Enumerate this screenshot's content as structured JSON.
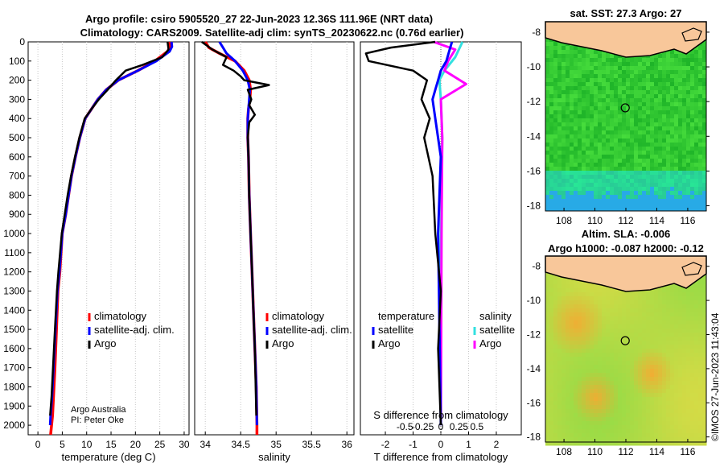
{
  "header": {
    "line1": "Argo profile: csiro 5905520_27 22-Jun-2023 12.36S 111.96E (NRT data)",
    "line2": "Climatology: CARS2009. Satellite-adj clim: synTS_20230622.nc (0.76d earlier)"
  },
  "credits": {
    "org": "Argo Australia",
    "pi": "PI: Peter Oke",
    "stamp": "©IMOS 27-Jun-2023 11:43:04"
  },
  "colors": {
    "climatology": "#ff0000",
    "satellite": "#0000ff",
    "argo": "#000000",
    "sat_salinity": "#33e0e0",
    "argo_salinity": "#ff00ff",
    "land": "#f8c79a"
  },
  "chart_data": [
    {
      "type": "line",
      "name": "temperature-profile",
      "xlabel": "temperature (deg C)",
      "ylabel": "",
      "xlim": [
        -2,
        31
      ],
      "ylim": [
        2050,
        0
      ],
      "xticks": [
        0,
        5,
        10,
        15,
        20,
        25,
        30
      ],
      "yticks": [
        0,
        100,
        200,
        300,
        400,
        500,
        600,
        700,
        800,
        900,
        1000,
        1100,
        1200,
        1300,
        1400,
        1500,
        1600,
        1700,
        1800,
        1900,
        2000
      ],
      "legend": [
        "climatology",
        "satellite-adj. clim.",
        "Argo"
      ],
      "series": [
        {
          "name": "climatology",
          "x": [
            27.0,
            27.1,
            26.6,
            24.0,
            20.5,
            16.5,
            14.0,
            12.3,
            11.0,
            9.7,
            8.6,
            7.7,
            6.9,
            6.3,
            5.7,
            5.0,
            4.5,
            4.1,
            3.8,
            3.5,
            3.2,
            3.0,
            2.8,
            2.6
          ],
          "y": [
            0,
            25,
            50,
            100,
            150,
            200,
            250,
            300,
            350,
            400,
            500,
            600,
            700,
            800,
            900,
            1000,
            1200,
            1300,
            1500,
            1700,
            1850,
            1950,
            2000,
            2050
          ]
        },
        {
          "name": "satellite-adj. clim.",
          "x": [
            27.4,
            27.5,
            27.0,
            24.3,
            20.5,
            16.5,
            14.0,
            12.3,
            11.0,
            9.7,
            8.6,
            7.7,
            6.9,
            6.3,
            5.7,
            5.0,
            4.4,
            4.0,
            3.6,
            3.2,
            2.9,
            2.6,
            2.5
          ],
          "y": [
            0,
            25,
            50,
            100,
            150,
            200,
            250,
            300,
            350,
            400,
            500,
            600,
            700,
            800,
            900,
            1000,
            1200,
            1300,
            1500,
            1700,
            1850,
            1950,
            2000
          ]
        },
        {
          "name": "Argo",
          "x": [
            26.6,
            26.8,
            25.5,
            21.5,
            18.0,
            16.0,
            14.3,
            12.5,
            11.0,
            9.6,
            8.5,
            7.6,
            6.8,
            6.1,
            5.5,
            4.9,
            4.2,
            3.9,
            3.5,
            3.1,
            2.8,
            2.5
          ],
          "y": [
            0,
            40,
            80,
            120,
            150,
            200,
            250,
            300,
            350,
            400,
            500,
            600,
            700,
            800,
            900,
            1000,
            1200,
            1300,
            1500,
            1700,
            1850,
            1950
          ]
        }
      ]
    },
    {
      "type": "line",
      "name": "salinity-profile",
      "xlabel": "salinity",
      "xlim": [
        33.85,
        36.1
      ],
      "ylim": [
        2050,
        0
      ],
      "xticks": [
        34,
        34.5,
        35,
        35.5,
        36
      ],
      "legend": [
        "climatology",
        "satellite-adj. clim.",
        "Argo"
      ],
      "series": [
        {
          "name": "climatology",
          "x": [
            34.0,
            34.05,
            34.2,
            34.42,
            34.55,
            34.62,
            34.64,
            34.63,
            34.61,
            34.6,
            34.6,
            34.61,
            34.62,
            34.64,
            34.66,
            34.68,
            34.7,
            34.72,
            34.73,
            34.73
          ],
          "y": [
            0,
            30,
            60,
            100,
            150,
            200,
            250,
            300,
            350,
            400,
            500,
            600,
            800,
            1000,
            1200,
            1400,
            1600,
            1800,
            2000,
            2050
          ]
        },
        {
          "name": "satellite-adj. clim.",
          "x": [
            34.2,
            34.25,
            34.3,
            34.42,
            34.53,
            34.6,
            34.63,
            34.62,
            34.61,
            34.6,
            34.6,
            34.61,
            34.62,
            34.64,
            34.66,
            34.68,
            34.7,
            34.72,
            34.73
          ],
          "y": [
            0,
            30,
            60,
            100,
            150,
            200,
            250,
            300,
            350,
            400,
            500,
            600,
            800,
            1000,
            1200,
            1400,
            1600,
            1800,
            2000
          ]
        },
        {
          "name": "Argo",
          "x": [
            33.95,
            34.1,
            34.3,
            34.25,
            34.4,
            34.5,
            34.55,
            34.9,
            34.6,
            34.65,
            34.62,
            34.7,
            34.62,
            34.6,
            34.61,
            34.62,
            34.64,
            34.66,
            34.68,
            34.7,
            34.72
          ],
          "y": [
            0,
            40,
            80,
            120,
            150,
            180,
            200,
            225,
            250,
            300,
            330,
            380,
            420,
            500,
            600,
            800,
            1000,
            1200,
            1400,
            1600,
            1950
          ]
        }
      ]
    },
    {
      "type": "line",
      "name": "difference-from-climatology",
      "xlabel": "T difference from climatology",
      "top_axis_label": "S difference from climatology",
      "xlim": [
        -2.9,
        2.9
      ],
      "ylim": [
        2050,
        0
      ],
      "xticks": [
        -2,
        -1,
        0,
        1,
        2
      ],
      "top_ticks": [
        -0.5,
        -0.25,
        0,
        0.25,
        0.5
      ],
      "legend_titles": [
        "temperature",
        "salinity"
      ],
      "legend": [
        "satellite",
        "Argo",
        "satellite",
        "Argo"
      ],
      "series": [
        {
          "name": "temperature satellite",
          "x": [
            0.4,
            0.3,
            0.2,
            0.0,
            -0.1,
            -0.2,
            -0.3,
            -0.2,
            0.0,
            -0.1,
            0.0
          ],
          "y": [
            0,
            50,
            100,
            150,
            200,
            250,
            300,
            400,
            600,
            1000,
            2000
          ]
        },
        {
          "name": "temperature Argo",
          "x": [
            -0.2,
            -1.8,
            -2.7,
            -2.6,
            -1.0,
            -0.5,
            -0.7,
            -0.4,
            -0.6,
            -0.3,
            -0.2,
            0.0,
            -0.1,
            0.0
          ],
          "y": [
            0,
            30,
            60,
            100,
            150,
            200,
            300,
            400,
            500,
            700,
            1000,
            1300,
            1600,
            2000
          ]
        },
        {
          "name": "salinity satellite",
          "x": [
            0.3,
            0.25,
            0.2,
            0.05,
            -0.02,
            0.0,
            0.02,
            0.0,
            0.0
          ],
          "y": [
            0,
            40,
            80,
            150,
            200,
            300,
            500,
            1000,
            2000
          ]
        },
        {
          "name": "salinity Argo",
          "x": [
            -0.1,
            0.2,
            0.1,
            0.05,
            0.35,
            0.0,
            0.02,
            0.01,
            0.0
          ],
          "y": [
            0,
            40,
            100,
            150,
            220,
            300,
            500,
            1000,
            2000
          ]
        }
      ]
    },
    {
      "type": "heatmap",
      "name": "sst-map",
      "title": "sat. SST: 27.3 Argo: 27",
      "xlim": [
        106.8,
        117.2
      ],
      "ylim": [
        -18.3,
        -7.4
      ],
      "xticks": [
        108,
        110,
        112,
        114,
        116
      ],
      "yticks": [
        -8,
        -10,
        -12,
        -14,
        -16,
        -18
      ],
      "marker": {
        "lon": 111.96,
        "lat": -12.36
      }
    },
    {
      "type": "heatmap",
      "name": "sla-map",
      "title_line1": "Altim. SLA: -0.006",
      "title_line2": "Argo h1000: -0.087 h2000: -0.12",
      "xlim": [
        106.8,
        117.2
      ],
      "ylim": [
        -18.3,
        -7.4
      ],
      "xticks": [
        108,
        110,
        112,
        114,
        116
      ],
      "yticks": [
        -8,
        -10,
        -12,
        -14,
        -16,
        -18
      ],
      "marker": {
        "lon": 111.96,
        "lat": -12.36
      }
    }
  ]
}
